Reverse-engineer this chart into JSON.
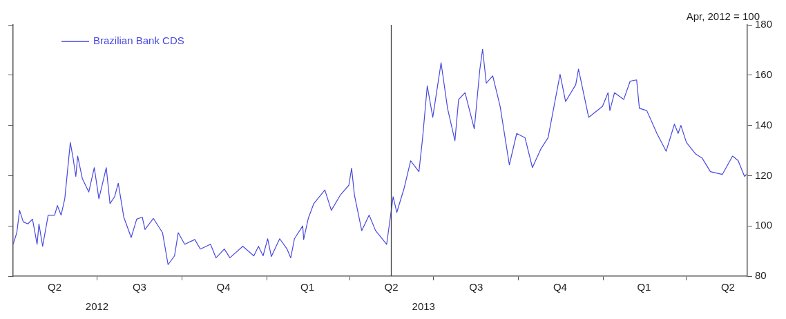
{
  "chart_data": {
    "type": "line",
    "annotations": [
      "Apr, 2012 = 100"
    ],
    "x": [
      "2012-04-01",
      "2012-04-05",
      "2012-04-08",
      "2012-04-12",
      "2012-04-17",
      "2012-04-22",
      "2012-04-27",
      "2012-04-29",
      "2012-05-03",
      "2012-05-09",
      "2012-05-16",
      "2012-05-19",
      "2012-05-23",
      "2012-05-27",
      "2012-06-02",
      "2012-06-05",
      "2012-06-08",
      "2012-06-10",
      "2012-06-15",
      "2012-06-22",
      "2012-06-28",
      "2012-07-03",
      "2012-07-11",
      "2012-07-15",
      "2012-07-20",
      "2012-07-24",
      "2012-07-30",
      "2012-08-07",
      "2012-08-13",
      "2012-08-19",
      "2012-08-22",
      "2012-08-31",
      "2012-09-10",
      "2012-09-16",
      "2012-09-23",
      "2012-09-27",
      "2012-10-04",
      "2012-10-15",
      "2012-10-21",
      "2012-11-01",
      "2012-11-07",
      "2012-11-16",
      "2012-11-22",
      "2012-12-06",
      "2012-12-18",
      "2012-12-23",
      "2012-12-28",
      "2013-01-02",
      "2013-01-06",
      "2013-01-15",
      "2013-01-23",
      "2013-01-27",
      "2013-01-31",
      "2013-02-09",
      "2013-02-10",
      "2013-02-15",
      "2013-02-21",
      "2013-03-05",
      "2013-03-12",
      "2013-03-22",
      "2013-03-31",
      "2013-04-03",
      "2013-04-06",
      "2013-04-14",
      "2013-04-22",
      "2013-04-29",
      "2013-05-05",
      "2013-05-11",
      "2013-05-14",
      "2013-05-18",
      "2013-05-22",
      "2013-05-30",
      "2013-06-06",
      "2013-06-15",
      "2013-06-19",
      "2013-06-24",
      "2013-06-30",
      "2013-07-09",
      "2013-07-16",
      "2013-07-24",
      "2013-07-28",
      "2013-08-04",
      "2013-08-14",
      "2013-08-20",
      "2013-08-23",
      "2013-08-27",
      "2013-09-03",
      "2013-09-11",
      "2013-09-21",
      "2013-09-29",
      "2013-10-08",
      "2013-10-16",
      "2013-10-25",
      "2013-11-02",
      "2013-11-15",
      "2013-11-21",
      "2013-12-02",
      "2013-12-05",
      "2013-12-16",
      "2013-12-31",
      "2014-01-06",
      "2014-01-08",
      "2014-01-13",
      "2014-01-23",
      "2014-01-30",
      "2014-02-06",
      "2014-02-09",
      "2014-02-17",
      "2014-02-28",
      "2014-03-10",
      "2014-03-19",
      "2014-03-23",
      "2014-03-26",
      "2014-04-01",
      "2014-04-11",
      "2014-04-18",
      "2014-04-27",
      "2014-05-10",
      "2014-05-21",
      "2014-05-27",
      "2014-06-03",
      "2014-06-05"
    ],
    "series": [
      {
        "name": "Brazilian Bank CDS",
        "color": "#4848e0",
        "values": [
          92.7,
          97.3,
          106.2,
          101.6,
          100.8,
          102.7,
          92.7,
          100.8,
          91.9,
          104.3,
          104.3,
          108.1,
          104.3,
          110.8,
          133.2,
          127,
          119.7,
          127.8,
          118.9,
          113.5,
          123.2,
          110.8,
          123.2,
          108.9,
          111.6,
          117,
          103.5,
          95.4,
          102.7,
          103.5,
          98.6,
          103,
          97.3,
          84.6,
          88.1,
          97.3,
          92.7,
          94.6,
          90.8,
          92.7,
          87.3,
          90.8,
          87.3,
          91.9,
          88.1,
          91.9,
          88.1,
          94.9,
          87.8,
          94.9,
          90.8,
          87.3,
          94.9,
          100,
          94.6,
          103,
          108.9,
          114.3,
          106.2,
          112.4,
          116.2,
          123,
          112.4,
          98.1,
          104.3,
          98.1,
          95.4,
          92.7,
          100.8,
          111.6,
          105.4,
          115.1,
          125.9,
          121.6,
          135.1,
          155.7,
          143.2,
          164.9,
          146.8,
          133.9,
          150.3,
          153,
          138.6,
          162.2,
          170.3,
          156.8,
          159.7,
          147.6,
          124.3,
          136.8,
          135.1,
          123.2,
          130.5,
          135.1,
          160.3,
          149.5,
          156.2,
          162.4,
          143.2,
          147.6,
          153,
          145.9,
          153,
          150.3,
          157.6,
          158.1,
          146.8,
          145.9,
          136.8,
          129.7,
          140.5,
          136.8,
          140,
          133.2,
          128.6,
          127,
          121.6,
          120.5,
          127.8,
          126,
          119.7,
          120.5
        ]
      }
    ],
    "xlim": [
      "2012-04-01",
      "2014-06-06"
    ],
    "xticks": [
      {
        "value": "2012-05-16",
        "label": "Q2"
      },
      {
        "value": "2012-07-01",
        "label": null
      },
      {
        "value": "2012-08-16",
        "label": "Q3"
      },
      {
        "value": "2012-10-01",
        "label": null
      },
      {
        "value": "2012-11-15",
        "label": "Q4"
      },
      {
        "value": "2013-01-01",
        "label": null
      },
      {
        "value": "2013-02-14",
        "label": "Q1"
      },
      {
        "value": "2013-04-01",
        "label": null
      },
      {
        "value": "2013-05-16",
        "label": "Q2"
      },
      {
        "value": "2013-07-01",
        "label": null
      },
      {
        "value": "2013-08-16",
        "label": "Q3"
      },
      {
        "value": "2013-10-01",
        "label": null
      },
      {
        "value": "2013-11-15",
        "label": "Q4"
      },
      {
        "value": "2014-01-01",
        "label": null
      },
      {
        "value": "2014-02-14",
        "label": "Q1"
      },
      {
        "value": "2014-04-01",
        "label": null
      },
      {
        "value": "2014-05-16",
        "label": "Q2"
      }
    ],
    "x2lim": [
      "2012-04-01",
      "2014-06-06"
    ],
    "x2ticks": [
      {
        "value": "2012-07-01",
        "label": "2012"
      },
      {
        "value": "2013-06-20",
        "label": "2013"
      }
    ],
    "ylim": [
      80,
      180
    ],
    "yticks": [
      80,
      100,
      120,
      140,
      160,
      180
    ],
    "ref_lines": [
      {
        "axis": "x",
        "value": "2013-05-16",
        "color": "#404040"
      }
    ],
    "grid": false,
    "legend": "top left",
    "marker": "none",
    "line_style": "solid"
  }
}
